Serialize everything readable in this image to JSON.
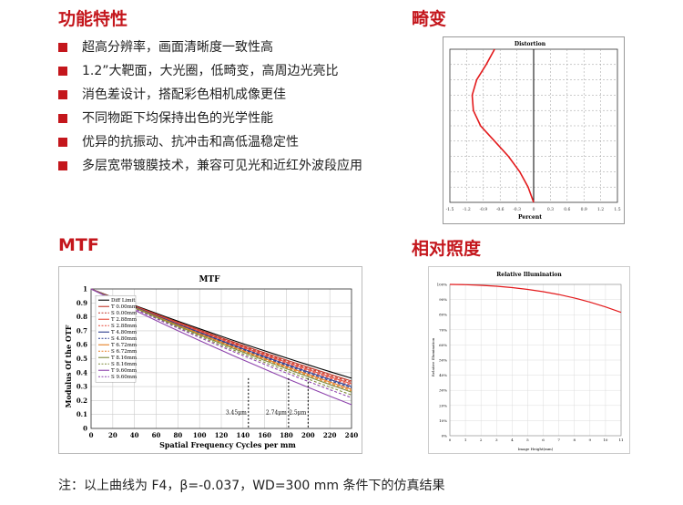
{
  "headings": {
    "features": "功能特性",
    "distortion": "畸变",
    "mtf": "MTF",
    "ri": "相对照度"
  },
  "features": [
    "超高分辨率，画面清晰度一致性高",
    "1.2”大靶面，大光圈，低畸变，高周边光亮比",
    "消色差设计，搭配彩色相机成像更佳",
    "不同物距下均保持出色的光学性能",
    "优异的抗振动、抗冲击和高低温稳定性",
    "多层宽带镀膜技术，兼容可见光和近红外波段应用"
  ],
  "note": "注：以上曲线为 F4，β=-0.037，WD=300 mm 条件下的仿真结果",
  "colors": {
    "accent": "#c4161c"
  },
  "chart_data": [
    {
      "type": "line",
      "title": "Distortion",
      "xlabel": "Percent",
      "xticks": [
        "-1.5",
        "-1.2",
        "-0.9",
        "-0.6",
        "-0.3",
        "0",
        "0.3",
        "0.6",
        "0.9",
        "1.2",
        "1.5"
      ],
      "xlim": [
        -1.5,
        1.5
      ],
      "ylim": [
        0,
        1
      ],
      "series": [
        {
          "x": [
            0,
            -0.1,
            -0.25,
            -0.45,
            -0.7,
            -0.95,
            -1.08,
            -1.1,
            -1.02,
            -0.85,
            -0.7
          ],
          "y": [
            0,
            0.1,
            0.2,
            0.3,
            0.4,
            0.5,
            0.6,
            0.7,
            0.8,
            0.9,
            1.0
          ],
          "color": "#e31a1c"
        }
      ]
    },
    {
      "type": "line",
      "title": "MTF",
      "xlabel": "Spatial Frequency Cycles per mm",
      "ylabel": "Modulus Of the OTF",
      "xticks": [
        "0",
        "20",
        "40",
        "60",
        "80",
        "100",
        "120",
        "140",
        "160",
        "180",
        "200",
        "220",
        "240"
      ],
      "yticks": [
        "0",
        "0.1",
        "0.2",
        "0.3",
        "0.4",
        "0.5",
        "0.6",
        "0.7",
        "0.8",
        "0.9",
        "1"
      ],
      "xlim": [
        0,
        240
      ],
      "ylim": [
        0,
        1
      ],
      "annotations": [
        {
          "x": 145,
          "label": "3.45μm"
        },
        {
          "x": 182,
          "label": "2.74μm"
        },
        {
          "x": 200,
          "label": "2.5μm"
        }
      ],
      "series": [
        {
          "name": "Diff Limit",
          "color": "#000000",
          "dash": false,
          "end": 0.36
        },
        {
          "name": "T 0.00mm",
          "color": "#c0392b",
          "dash": false,
          "end": 0.34
        },
        {
          "name": "S 0.00mm",
          "color": "#c0392b",
          "dash": true,
          "end": 0.33
        },
        {
          "name": "T 2.88mm",
          "color": "#e74c3c",
          "dash": false,
          "end": 0.32
        },
        {
          "name": "S 2.88mm",
          "color": "#e74c3c",
          "dash": true,
          "end": 0.31
        },
        {
          "name": "T 4.80mm",
          "color": "#2c3e8f",
          "dash": false,
          "end": 0.3
        },
        {
          "name": "S 4.80mm",
          "color": "#2c3e8f",
          "dash": true,
          "end": 0.29
        },
        {
          "name": "T 6.72mm",
          "color": "#e67e22",
          "dash": false,
          "end": 0.28
        },
        {
          "name": "S 6.72mm",
          "color": "#e67e22",
          "dash": true,
          "end": 0.27
        },
        {
          "name": "T 8.16mm",
          "color": "#7f8c3d",
          "dash": false,
          "end": 0.26
        },
        {
          "name": "S 8.16mm",
          "color": "#7f8c3d",
          "dash": true,
          "end": 0.24
        },
        {
          "name": "T 9.60mm",
          "color": "#8e44ad",
          "dash": false,
          "end": 0.17
        },
        {
          "name": "S 9.60mm",
          "color": "#8e44ad",
          "dash": true,
          "end": 0.22
        }
      ]
    },
    {
      "type": "line",
      "title": "Relative Illumination",
      "xlabel": "Image Height(mm)",
      "ylabel": "Relative Illumination",
      "yticks": [
        "0%",
        "10%",
        "20%",
        "30%",
        "40%",
        "50%",
        "60%",
        "70%",
        "80%",
        "90%",
        "100%"
      ],
      "xticks": [
        "0",
        "1",
        "2",
        "3",
        "4",
        "5",
        "6",
        "7",
        "8",
        "9",
        "10",
        "11"
      ],
      "xlim": [
        0,
        11
      ],
      "ylim": [
        0,
        100
      ],
      "series": [
        {
          "x": [
            0,
            1,
            2,
            3,
            4,
            5,
            6,
            7,
            8,
            9,
            10,
            11
          ],
          "y": [
            100,
            99.8,
            99.4,
            98.8,
            97.9,
            96.7,
            95.2,
            93.3,
            91,
            88.3,
            85.1,
            81.5
          ],
          "color": "#e31a1c"
        }
      ]
    }
  ]
}
